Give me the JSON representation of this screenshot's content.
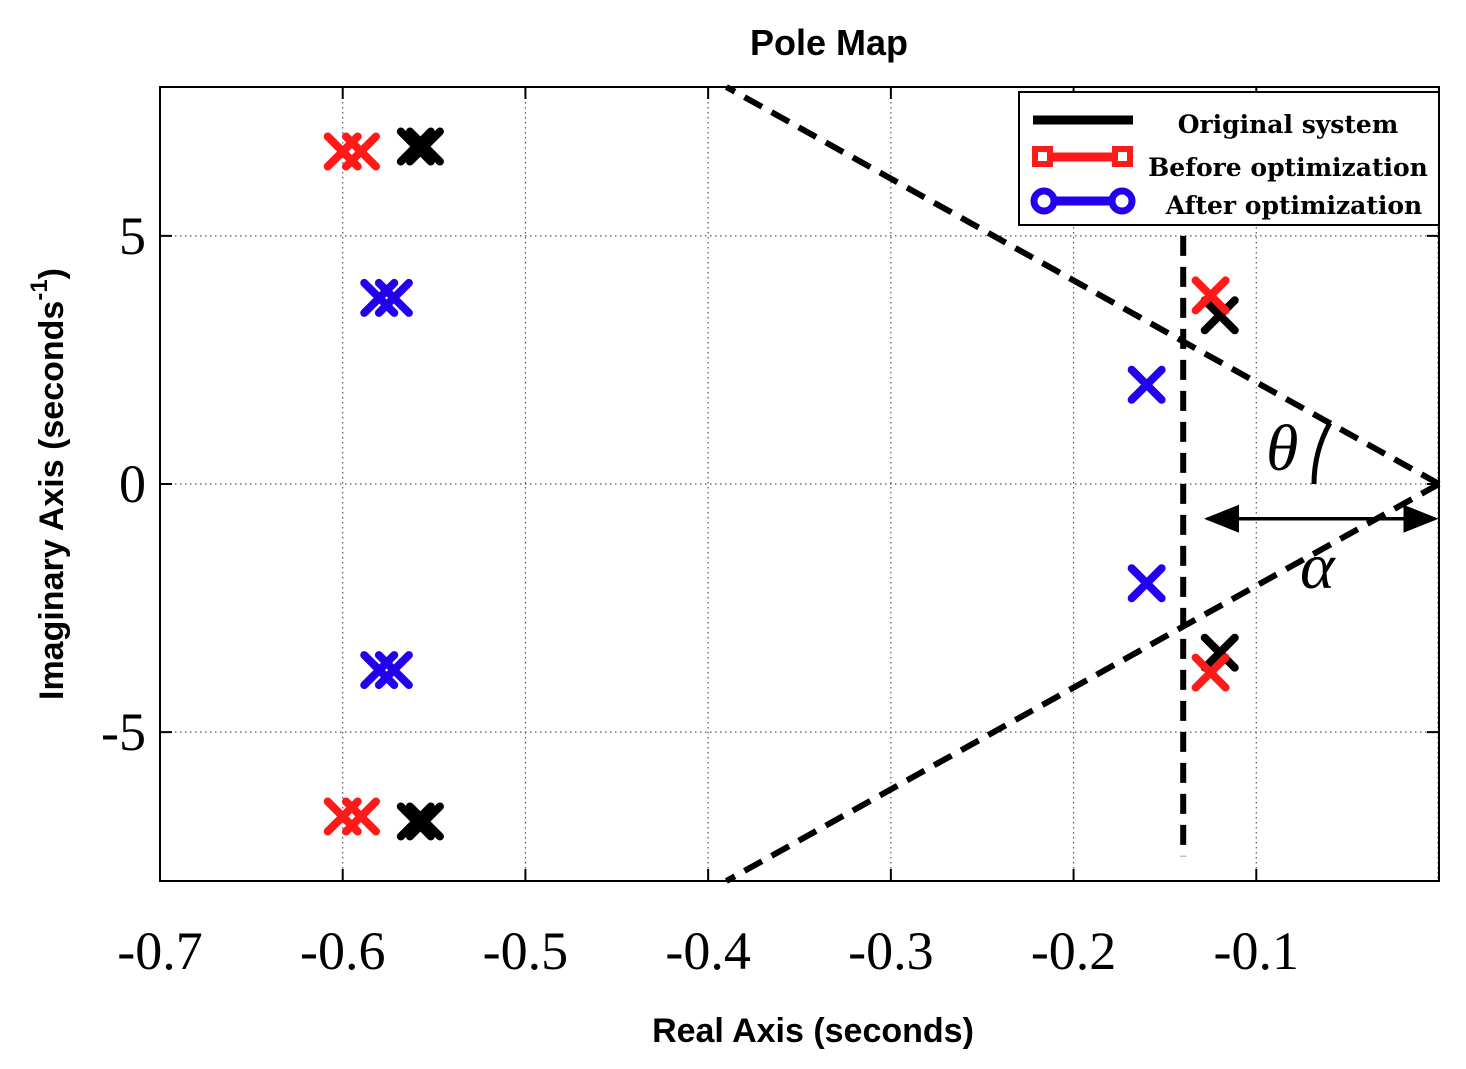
{
  "chart_data": {
    "type": "scatter",
    "title": "Pole Map",
    "xlabel": "Real Axis (seconds)",
    "ylabel": "Imaginary Axis (seconds",
    "ylabel_superscript": "-1",
    "ylabel_close": ")",
    "xlim": [
      -0.7,
      0.0
    ],
    "ylim": [
      -8,
      8
    ],
    "x_ticks": [
      -0.7,
      -0.6,
      -0.5,
      -0.4,
      -0.3,
      -0.2,
      -0.1
    ],
    "x_tick_labels": [
      "-0.7",
      "-0.6",
      "-0.5",
      "-0.4",
      "-0.3",
      "-0.2",
      "-0.1"
    ],
    "y_ticks": [
      -5,
      0,
      5
    ],
    "y_tick_labels": [
      "-5",
      "0",
      "5"
    ],
    "grid": true,
    "legend_position": "top-right",
    "series": [
      {
        "name": "Original system",
        "color": "#000000",
        "marker": "x",
        "points": [
          [
            -0.56,
            6.8
          ],
          [
            -0.555,
            6.8
          ],
          [
            -0.56,
            -6.8
          ],
          [
            -0.555,
            -6.8
          ],
          [
            -0.12,
            3.4
          ],
          [
            -0.12,
            -3.4
          ]
        ]
      },
      {
        "name": "Before optimization",
        "color": "#ff1a1a",
        "marker": "x",
        "points": [
          [
            -0.6,
            6.7
          ],
          [
            -0.59,
            6.7
          ],
          [
            -0.6,
            -6.7
          ],
          [
            -0.59,
            -6.7
          ],
          [
            -0.125,
            3.8
          ],
          [
            -0.125,
            -3.8
          ]
        ]
      },
      {
        "name": "After optimization",
        "color": "#2200ee",
        "marker": "x",
        "points": [
          [
            -0.58,
            3.75
          ],
          [
            -0.572,
            3.75
          ],
          [
            -0.58,
            -3.75
          ],
          [
            -0.572,
            -3.75
          ],
          [
            -0.16,
            2.0
          ],
          [
            -0.16,
            -2.0
          ]
        ]
      }
    ],
    "annotations": {
      "theta": "θ",
      "alpha": "α",
      "sector_lines": [
        {
          "from": [
            0.0,
            0.0
          ],
          "to": [
            -0.39,
            8.0
          ]
        },
        {
          "from": [
            0.0,
            0.0
          ],
          "to": [
            -0.39,
            -8.0
          ]
        }
      ],
      "vertical_line_x": -0.14,
      "vertical_line_y": [
        -7.5,
        5.0
      ],
      "alpha_arrow": {
        "from": -0.13,
        "to": 0.0,
        "y": -0.7
      }
    }
  }
}
